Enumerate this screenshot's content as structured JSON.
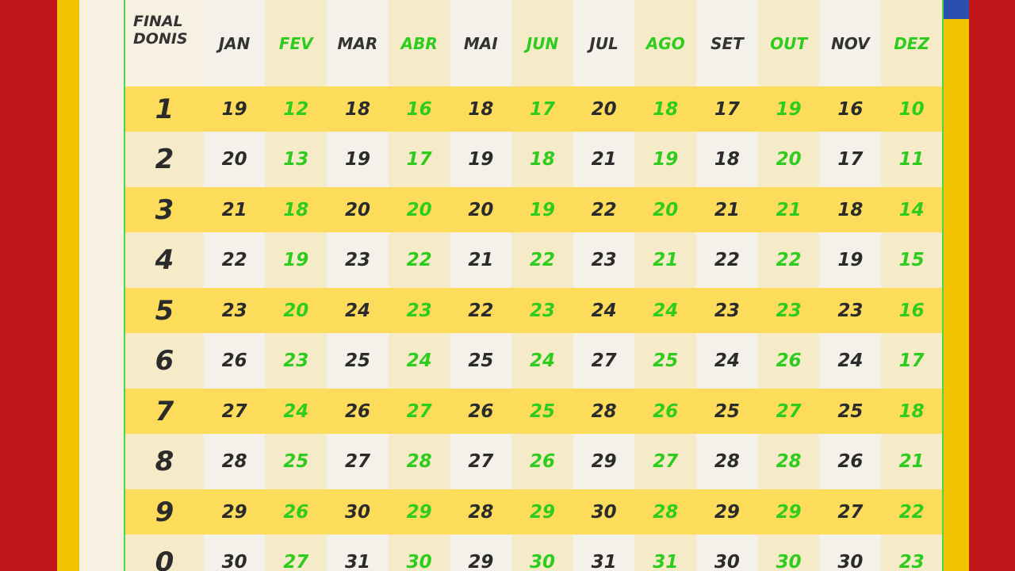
{
  "header": {
    "first_col_line1": "FINAL",
    "first_col_line2_a": "DO",
    "first_col_line2_b": "NIS"
  },
  "months": [
    "JAN",
    "FEV",
    "MAR",
    "ABR",
    "MAI",
    "JUN",
    "JUL",
    "AGO",
    "SET",
    "OUT",
    "NOV",
    "DEZ"
  ],
  "colors": {
    "green": "#2ecc1e",
    "dark": "#2b2b2b",
    "yellow_row": "#fddc5c",
    "background": "#c0161a"
  },
  "rows": [
    {
      "nis": "1",
      "dates": [
        "19",
        "12",
        "18",
        "16",
        "18",
        "17",
        "20",
        "18",
        "17",
        "19",
        "16",
        "10"
      ]
    },
    {
      "nis": "2",
      "dates": [
        "20",
        "13",
        "19",
        "17",
        "19",
        "18",
        "21",
        "19",
        "18",
        "20",
        "17",
        "11"
      ]
    },
    {
      "nis": "3",
      "dates": [
        "21",
        "18",
        "20",
        "20",
        "20",
        "19",
        "22",
        "20",
        "21",
        "21",
        "18",
        "14"
      ]
    },
    {
      "nis": "4",
      "dates": [
        "22",
        "19",
        "23",
        "22",
        "21",
        "22",
        "23",
        "21",
        "22",
        "22",
        "19",
        "15"
      ]
    },
    {
      "nis": "5",
      "dates": [
        "23",
        "20",
        "24",
        "23",
        "22",
        "23",
        "24",
        "24",
        "23",
        "23",
        "23",
        "16"
      ]
    },
    {
      "nis": "6",
      "dates": [
        "26",
        "23",
        "25",
        "24",
        "25",
        "24",
        "27",
        "25",
        "24",
        "26",
        "24",
        "17"
      ]
    },
    {
      "nis": "7",
      "dates": [
        "27",
        "24",
        "26",
        "27",
        "26",
        "25",
        "28",
        "26",
        "25",
        "27",
        "25",
        "18"
      ]
    },
    {
      "nis": "8",
      "dates": [
        "28",
        "25",
        "27",
        "28",
        "27",
        "26",
        "29",
        "27",
        "28",
        "28",
        "26",
        "21"
      ]
    },
    {
      "nis": "9",
      "dates": [
        "29",
        "26",
        "30",
        "29",
        "28",
        "29",
        "30",
        "28",
        "29",
        "29",
        "27",
        "22"
      ]
    },
    {
      "nis": "0",
      "dates": [
        "30",
        "27",
        "31",
        "30",
        "29",
        "30",
        "31",
        "31",
        "30",
        "30",
        "30",
        "23"
      ]
    }
  ]
}
